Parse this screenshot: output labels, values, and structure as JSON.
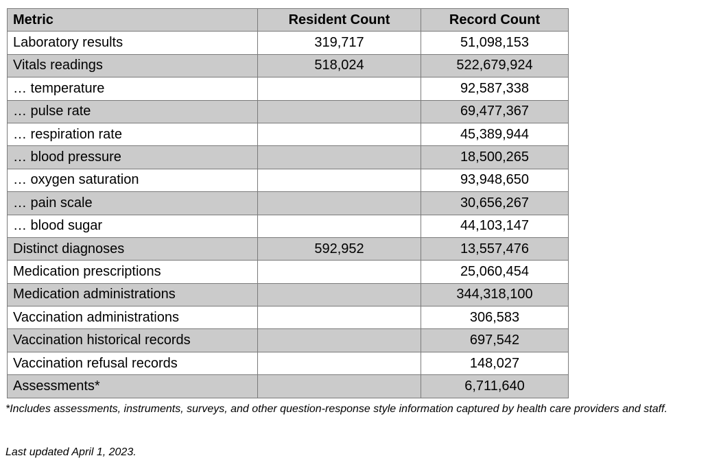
{
  "table": {
    "columns": [
      {
        "key": "metric",
        "label": "Metric"
      },
      {
        "key": "resident_count",
        "label": "Resident Count"
      },
      {
        "key": "record_count",
        "label": "Record Count"
      }
    ],
    "rows": [
      {
        "metric": "Laboratory results",
        "resident_count": "319,717",
        "record_count": "51,098,153"
      },
      {
        "metric": "Vitals readings",
        "resident_count": "518,024",
        "record_count": "522,679,924"
      },
      {
        "metric": "… temperature",
        "resident_count": "",
        "record_count": "92,587,338"
      },
      {
        "metric": "… pulse rate",
        "resident_count": "",
        "record_count": "69,477,367"
      },
      {
        "metric": "… respiration rate",
        "resident_count": "",
        "record_count": "45,389,944"
      },
      {
        "metric": "… blood pressure",
        "resident_count": "",
        "record_count": "18,500,265"
      },
      {
        "metric": "… oxygen saturation",
        "resident_count": "",
        "record_count": "93,948,650"
      },
      {
        "metric": "… pain scale",
        "resident_count": "",
        "record_count": "30,656,267"
      },
      {
        "metric": "… blood sugar",
        "resident_count": "",
        "record_count": "44,103,147"
      },
      {
        "metric": "Distinct diagnoses",
        "resident_count": "592,952",
        "record_count": "13,557,476"
      },
      {
        "metric": "Medication prescriptions",
        "resident_count": "",
        "record_count": "25,060,454"
      },
      {
        "metric": "Medication administrations",
        "resident_count": "",
        "record_count": "344,318,100"
      },
      {
        "metric": "Vaccination administrations",
        "resident_count": "",
        "record_count": "306,583"
      },
      {
        "metric": "Vaccination historical records",
        "resident_count": "",
        "record_count": "697,542"
      },
      {
        "metric": "Vaccination refusal records",
        "resident_count": "",
        "record_count": "148,027"
      },
      {
        "metric": "Assessments*",
        "resident_count": "",
        "record_count": "6,711,640"
      }
    ]
  },
  "footnote": "*Includes assessments, instruments, surveys, and other question-response style information captured by health care providers and staff.",
  "last_updated": "Last updated April 1, 2023.",
  "colors": {
    "row_alt_bg": "#cbcbcb",
    "header_bg": "#cbcbcb",
    "border": "#7a7a7a",
    "text": "#000000",
    "background": "#ffffff"
  }
}
